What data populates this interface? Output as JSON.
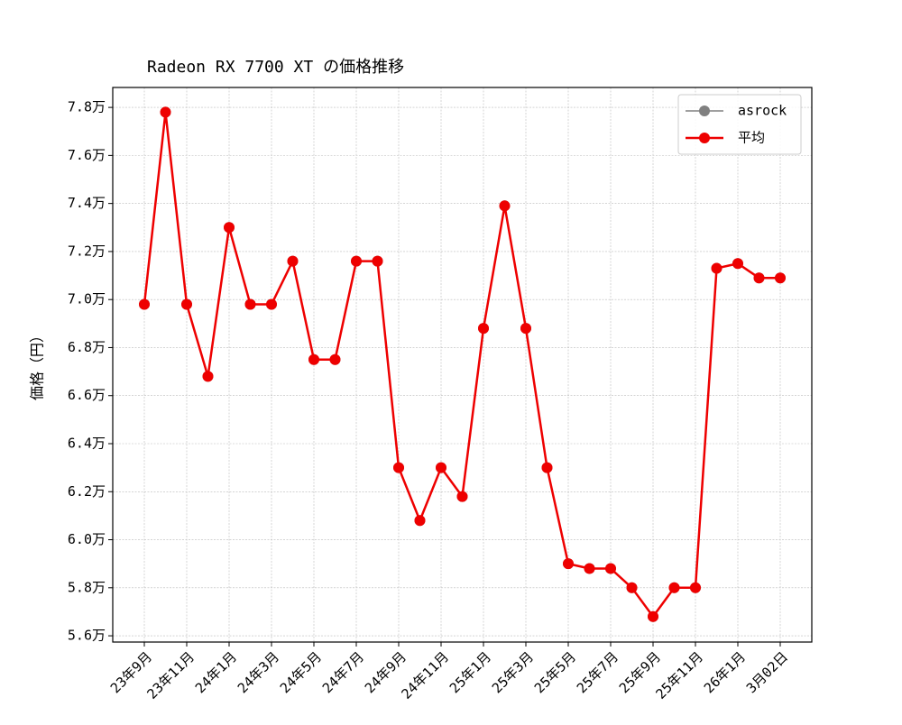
{
  "chart_data": {
    "type": "line",
    "title": "Radeon RX 7700 XT の価格推移",
    "y_label": "価格（円）",
    "categories": [
      "23年9月",
      null,
      "23年11月",
      null,
      "24年1月",
      null,
      "24年3月",
      null,
      "24年5月",
      null,
      "24年7月",
      null,
      "24年9月",
      null,
      "24年11月",
      null,
      "25年1月",
      null,
      "25年3月",
      null,
      "25年5月",
      null,
      "25年7月",
      null,
      "25年9月",
      null,
      "25年11月",
      null,
      "26年1月",
      null,
      "3月02日"
    ],
    "series": [
      {
        "name": "asrock",
        "color": "#808080",
        "values": [
          69800,
          77800,
          69800,
          66800,
          73000,
          69800,
          69800,
          71600,
          67500,
          67500,
          71600,
          71600,
          63000,
          60800,
          63000,
          61800,
          68800,
          73900,
          68800,
          63000,
          59000,
          58800,
          58800,
          58000,
          56800,
          58000,
          58000,
          71300,
          71500,
          70900,
          70900
        ]
      },
      {
        "name": "平均",
        "color": "#ee0000",
        "values": [
          69800,
          77800,
          69800,
          66800,
          73000,
          69800,
          69800,
          71600,
          67500,
          67500,
          71600,
          71600,
          63000,
          60800,
          63000,
          61800,
          68800,
          73900,
          68800,
          63000,
          59000,
          58800,
          58800,
          58000,
          56800,
          58000,
          58000,
          71300,
          71500,
          70900,
          70900
        ]
      }
    ],
    "ylim": [
      55740,
      78830
    ],
    "yticks": [
      {
        "value": 56000,
        "label": "5.6万"
      },
      {
        "value": 58000,
        "label": "5.8万"
      },
      {
        "value": 60000,
        "label": "6.0万"
      },
      {
        "value": 62000,
        "label": "6.2万"
      },
      {
        "value": 64000,
        "label": "6.4万"
      },
      {
        "value": 66000,
        "label": "6.6万"
      },
      {
        "value": 68000,
        "label": "6.8万"
      },
      {
        "value": 70000,
        "label": "7.0万"
      },
      {
        "value": 72000,
        "label": "7.2万"
      },
      {
        "value": 74000,
        "label": "7.4万"
      },
      {
        "value": 76000,
        "label": "7.6万"
      },
      {
        "value": 78000,
        "label": "7.8万"
      }
    ],
    "grid": true,
    "legend": "upper right"
  }
}
